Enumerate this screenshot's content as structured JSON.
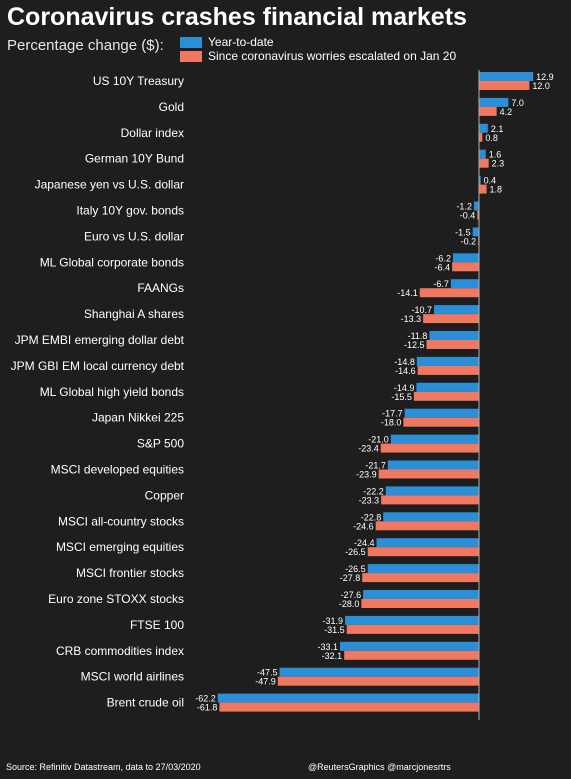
{
  "title": "Coronavirus crashes financial markets",
  "subtitle": "Percentage change ($):",
  "colors": {
    "ytd": "#2a8fd6",
    "since": "#f07860",
    "background": "#1e1e1e",
    "text": "#ffffff"
  },
  "footer": {
    "source": "Source: Refinitiv Datastream, data to 27/03/2020",
    "credit": "@ReutersGraphics @marcjonesrtrs"
  },
  "chart_data": {
    "type": "bar",
    "orientation": "horizontal",
    "categories": [
      "US 10Y Treasury",
      "Gold",
      "Dollar index",
      "German 10Y Bund",
      "Japanese yen vs U.S. dollar",
      "Italy 10Y gov. bonds",
      "Euro vs U.S. dollar",
      "ML Global corporate bonds",
      "FAANGs",
      "Shanghai A shares",
      "JPM EMBI emerging dollar debt",
      "JPM GBI EM local currency debt",
      "ML Global high yield bonds",
      "Japan Nikkei 225",
      "S&P 500",
      "MSCI developed equities",
      "Copper",
      "MSCI all-country stocks",
      "MSCI emerging equities",
      "MSCI frontier stocks",
      "Euro zone STOXX stocks",
      "FTSE 100",
      "CRB commodities index",
      "MSCI world airlines",
      "Brent crude oil"
    ],
    "series": [
      {
        "name": "Year-to-date",
        "values": [
          12.9,
          7.0,
          2.1,
          1.6,
          0.4,
          -1.2,
          -1.5,
          -6.2,
          -6.7,
          -10.7,
          -11.8,
          -14.8,
          -14.9,
          -17.7,
          -21.0,
          -21.7,
          -22.2,
          -22.8,
          -24.4,
          -26.5,
          -27.6,
          -31.9,
          -33.1,
          -47.5,
          -62.2
        ],
        "labels": [
          "12.9",
          "7.0",
          "2.1",
          "1.6",
          "0.4",
          "-1.2",
          "-1.5",
          "-6.2",
          "-6.7",
          "-10.7",
          "-11.8",
          "-14.8",
          "-14.9",
          "-17.7",
          "-21.0",
          "-21.7",
          "-22.2",
          "-22.8",
          "-24.4",
          "-26.5",
          "-27.6",
          "-31.9",
          "-33.1",
          "-47.5",
          "-62.2"
        ]
      },
      {
        "name": "Since coronavirus worries escalated on Jan 20",
        "values": [
          12.0,
          4.2,
          0.8,
          2.3,
          1.8,
          -0.4,
          -0.2,
          -6.4,
          -14.1,
          -13.3,
          -12.5,
          -14.6,
          -15.5,
          -18.0,
          -23.4,
          -23.9,
          -23.3,
          -24.6,
          -26.5,
          -27.8,
          -28.0,
          -31.5,
          -32.1,
          -47.9,
          -61.8
        ],
        "labels": [
          "12.0",
          "4.2",
          "0.8",
          "2.3",
          "1.8",
          "-0.4",
          "-0.2",
          "-6.4",
          "-14.1",
          "-13.3",
          "-12.5",
          "-14.6",
          "-15.5",
          "-18.0",
          "-23.4",
          "-23.9",
          "-23.3",
          "-24.6",
          "-26.5",
          "-27.8",
          "-28.0",
          "-31.5",
          "-32.1",
          "-47.9",
          "-61.8"
        ]
      }
    ],
    "xlim": [
      -62.2,
      12.9
    ],
    "grid": false,
    "legend": "top"
  }
}
